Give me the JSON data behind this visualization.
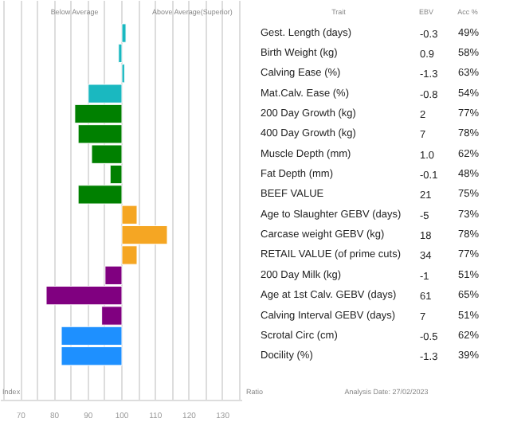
{
  "chart_data": {
    "type": "bar",
    "orientation": "horizontal",
    "categories": [
      "Gest. Length (days)",
      "Birth Weight (kg)",
      "Calving Ease (%)",
      "Mat.Calv. Ease (%)",
      "200 Day Growth (kg)",
      "400 Day Growth (kg)",
      "Muscle Depth (mm)",
      "Fat Depth (mm)",
      "BEEF VALUE",
      "Age to Slaughter GEBV (days)",
      "Carcase weight GEBV (kg)",
      "RETAIL VALUE (of prime cuts)",
      "200 Day Milk (kg)",
      "Age at 1st Calv. GEBV (days)",
      "Calving Interval GEBV (days)",
      "Scrotal Circ (cm)",
      "Docility (%)"
    ],
    "base": [
      100,
      100,
      100,
      100,
      100,
      100,
      100,
      100,
      100,
      100,
      100,
      100,
      100,
      100,
      100,
      100,
      100
    ],
    "values": [
      1.2,
      -1,
      0.8,
      -10,
      -14,
      -13,
      -9,
      -3.5,
      -13,
      4.5,
      13.5,
      4.5,
      -5,
      -22.5,
      -6,
      -18,
      -18
    ],
    "colors": [
      "#1ab8c0",
      "#1ab8c0",
      "#1ab8c0",
      "#1ab8c0",
      "#008000",
      "#008000",
      "#008000",
      "#008000",
      "#008000",
      "#f5a623",
      "#f5a623",
      "#f5a623",
      "#800080",
      "#800080",
      "#800080",
      "#1e90ff",
      "#1e90ff"
    ],
    "xticks": [
      {
        "value": 65,
        "label": null
      },
      70,
      {
        "value": 75,
        "label": null
      },
      80,
      {
        "value": 85,
        "label": null
      },
      90,
      {
        "value": 95,
        "label": null
      },
      100,
      {
        "value": 105,
        "label": null
      },
      110,
      {
        "value": 115,
        "label": null
      },
      120,
      {
        "value": 125,
        "label": null
      },
      130,
      {
        "value": 135,
        "label": null
      }
    ],
    "xlim": [
      64,
      136
    ],
    "grid": "x",
    "annotations": [
      "Below Average",
      "Above Average(Superior)",
      "Trait",
      "EBV",
      "Acc %",
      "Index",
      "Ratio",
      "Analysis Date: 27/02/2023",
      "-0.3",
      "49%",
      "0.9",
      "58%",
      "-1.3",
      "63%",
      "-0.8",
      "54%",
      "2",
      "77%",
      "7",
      "78%",
      "1.0",
      "62%",
      "-0.1",
      "48%",
      "21",
      "75%",
      "-5",
      "73%",
      "18",
      "78%",
      "34",
      "77%",
      "-1",
      "51%",
      "61",
      "65%",
      "7",
      "51%",
      "-0.5",
      "62%",
      "-1.3",
      "39%"
    ]
  }
}
